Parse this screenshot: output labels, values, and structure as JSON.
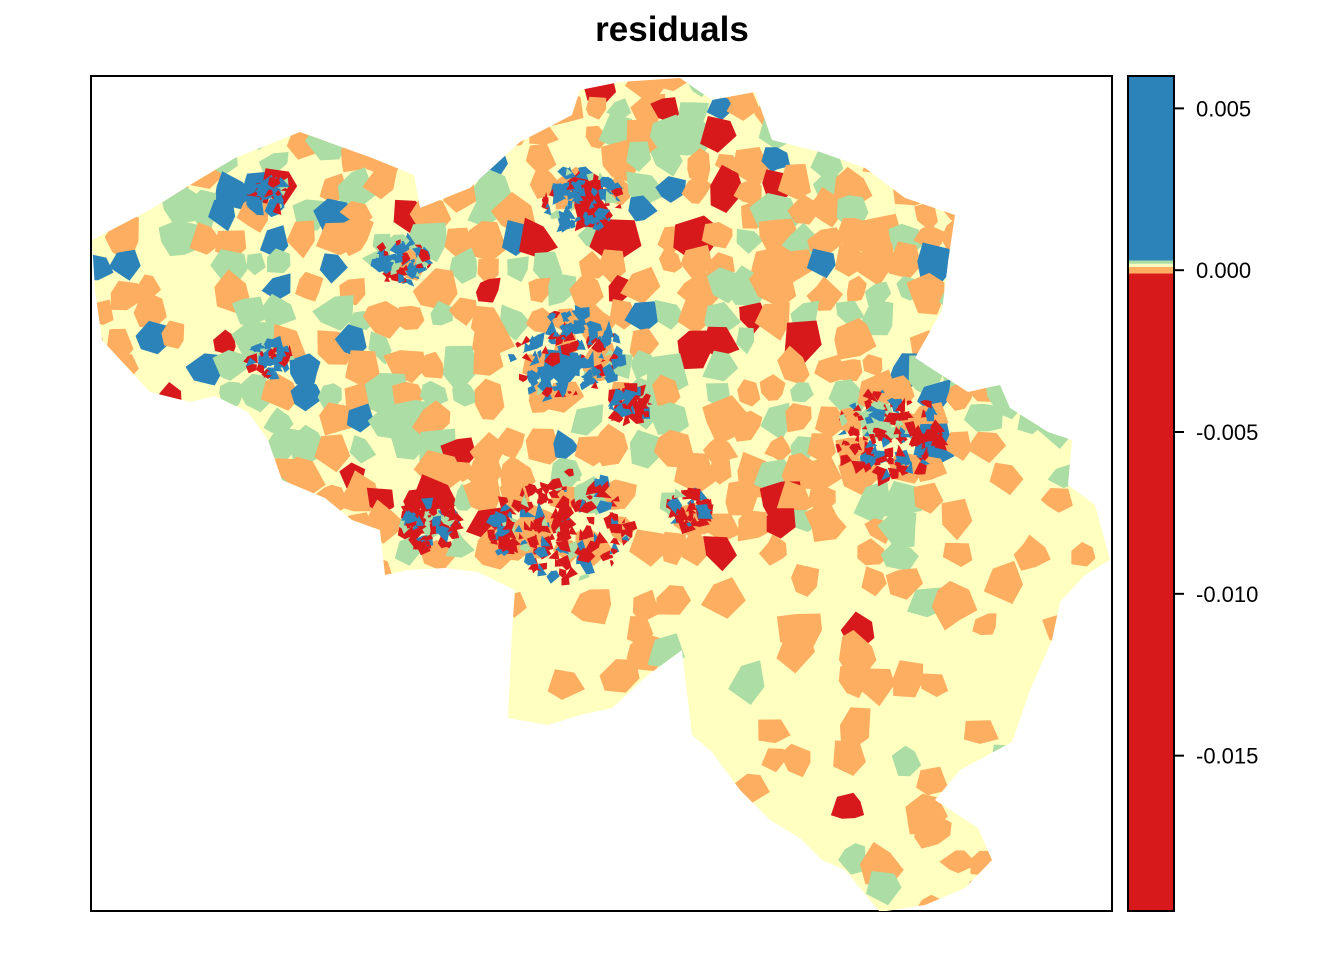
{
  "title": "residuals",
  "colors": {
    "strong_negative": "#d7191c",
    "negative": "#fdae61",
    "near_zero": "#ffffbf",
    "positive": "#abdda4",
    "strong_positive": "#2b83ba",
    "frame": "#000000",
    "background": "#ffffff"
  },
  "legend": {
    "type": "colorbar",
    "placement": "right",
    "range": [
      -0.0198,
      0.006
    ],
    "segments": [
      {
        "from": -0.0198,
        "to": -0.0001,
        "color": "#d7191c"
      },
      {
        "from": -0.0001,
        "to": 0.0001,
        "color": "#fdae61"
      },
      {
        "from": 0.0001,
        "to": 0.0002,
        "color": "#ffffbf"
      },
      {
        "from": 0.0002,
        "to": 0.0003,
        "color": "#abdda4"
      },
      {
        "from": 0.0003,
        "to": 0.006,
        "color": "#2b83ba"
      }
    ],
    "ticks": [
      {
        "value": 0.005,
        "label": "0.005"
      },
      {
        "value": 0.0,
        "label": "0.000"
      },
      {
        "value": -0.005,
        "label": "-0.005"
      },
      {
        "value": -0.01,
        "label": "-0.010"
      },
      {
        "value": -0.015,
        "label": "-0.015"
      }
    ]
  },
  "chart_data": {
    "type": "heatmap",
    "title": "residuals",
    "description_of_fill": "choropleth of municipalities with residual classes",
    "classes": [
      "strong_negative",
      "negative",
      "near_zero",
      "positive",
      "strong_positive"
    ],
    "legend_placement": "right",
    "colorbar_range": [
      -0.0198,
      0.006
    ]
  }
}
